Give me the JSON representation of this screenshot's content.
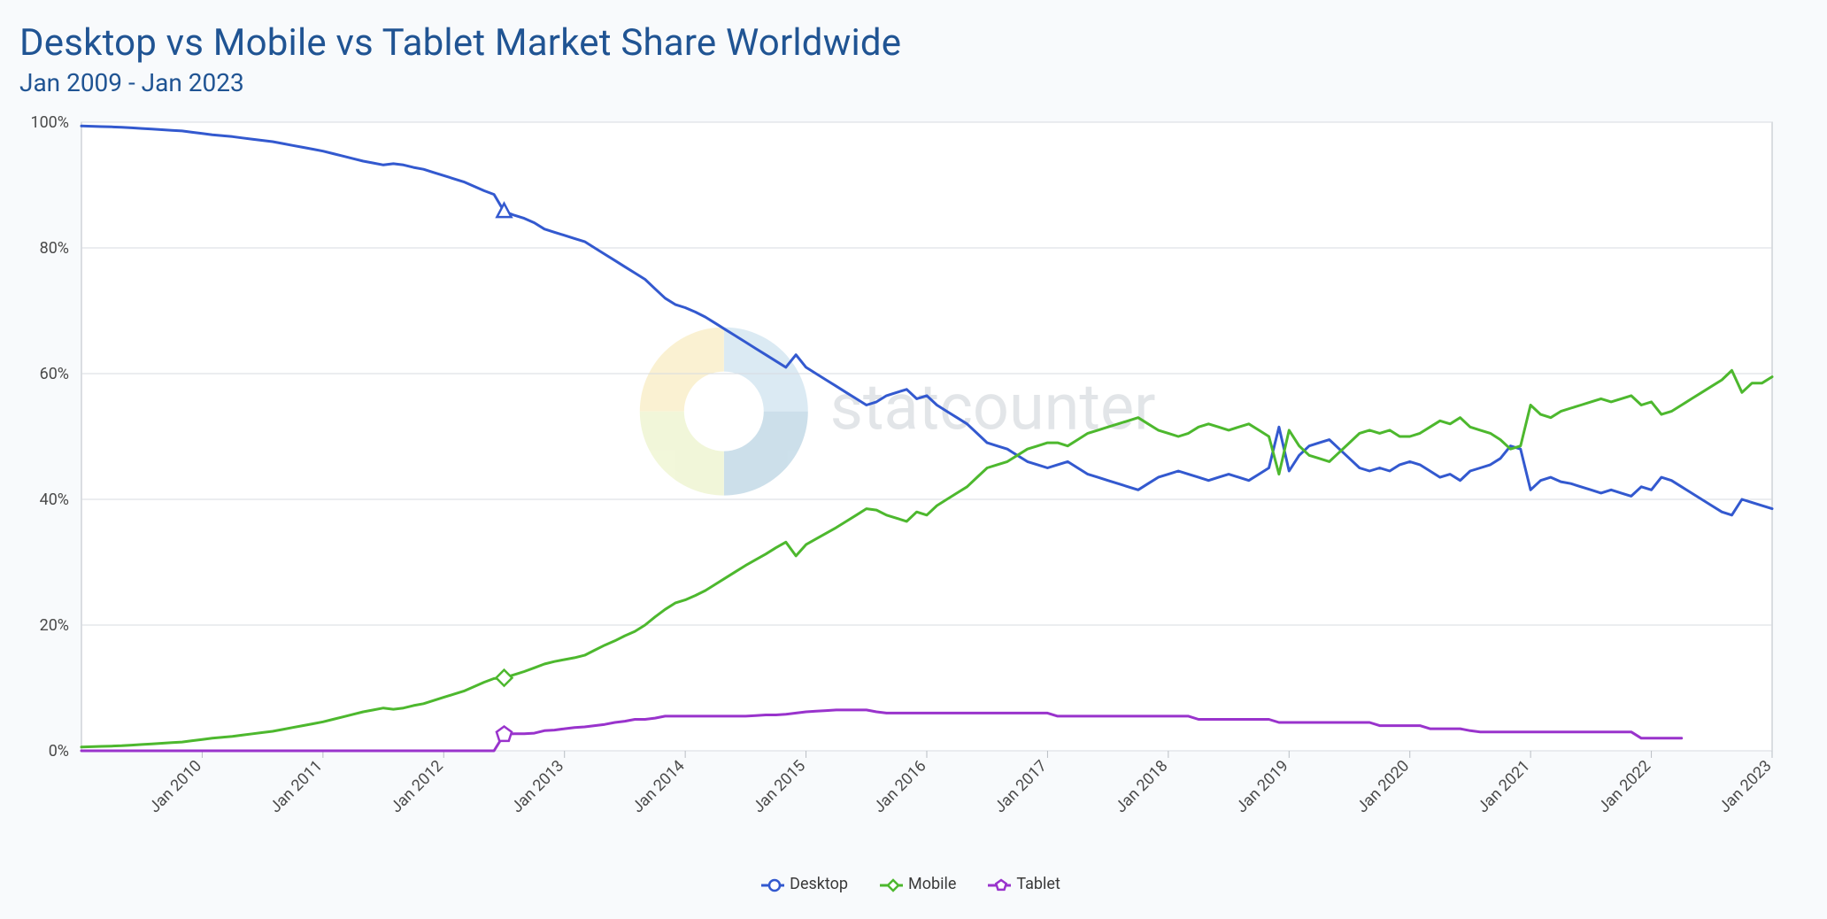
{
  "title": "Desktop vs Mobile vs Tablet Market Share Worldwide",
  "subtitle": "Jan 2009 - Jan 2023",
  "title_color": "#205493",
  "title_fontsize": 42,
  "subtitle_fontsize": 28,
  "watermark_text": "statcounter",
  "watermark_color": "#9aa4ae",
  "chart": {
    "type": "line",
    "background_color": "#ffffff",
    "page_background": "#f8fafc",
    "plot_border_color": "#b9bec4",
    "grid_color": "#d7dbe0",
    "axis_label_color": "#4a4a4a",
    "axis_label_fontsize": 18,
    "line_width": 3,
    "ylim": [
      0,
      100
    ],
    "y_ticks": [
      0,
      20,
      40,
      60,
      80,
      100
    ],
    "y_tick_labels": [
      "0%",
      "20%",
      "40%",
      "60%",
      "80%",
      "100%"
    ],
    "n_points": 169,
    "x_tick_indices": [
      12,
      24,
      36,
      48,
      60,
      72,
      84,
      96,
      108,
      120,
      132,
      144,
      156,
      168
    ],
    "x_tick_labels": [
      "Jan 2010",
      "Jan 2011",
      "Jan 2012",
      "Jan 2013",
      "Jan 2014",
      "Jan 2015",
      "Jan 2016",
      "Jan 2017",
      "Jan 2018",
      "Jan 2019",
      "Jan 2020",
      "Jan 2021",
      "Jan 2022",
      "Jan 2023"
    ],
    "marker_month_index": 42,
    "series": [
      {
        "name": "Desktop",
        "color": "#3359cf",
        "marker": "circle",
        "values": [
          99.4,
          99.35,
          99.3,
          99.25,
          99.2,
          99.1,
          99.0,
          98.9,
          98.8,
          98.7,
          98.6,
          98.4,
          98.2,
          98.0,
          97.85,
          97.7,
          97.5,
          97.3,
          97.1,
          96.9,
          96.6,
          96.3,
          96.0,
          95.7,
          95.4,
          95.0,
          94.6,
          94.2,
          93.8,
          93.5,
          93.2,
          93.4,
          93.2,
          92.8,
          92.5,
          92.0,
          91.5,
          91.0,
          90.5,
          89.8,
          89.1,
          88.5,
          85.8,
          85.2,
          84.7,
          84.0,
          83.0,
          82.5,
          82.0,
          81.5,
          81.0,
          80.0,
          79.0,
          78.0,
          77.0,
          76.0,
          75.0,
          73.5,
          72.0,
          71.0,
          70.5,
          69.8,
          69.0,
          68.0,
          67.0,
          66.0,
          65.0,
          64.0,
          63.0,
          62.0,
          61.0,
          63.0,
          61.0,
          60.0,
          59.0,
          58.0,
          57.0,
          56.0,
          55.0,
          55.5,
          56.5,
          57.0,
          57.5,
          56.0,
          56.5,
          55.0,
          54.0,
          53.0,
          52.0,
          50.5,
          49.0,
          48.5,
          48.0,
          47.0,
          46.0,
          45.5,
          45.0,
          45.5,
          46.0,
          45.0,
          44.0,
          43.5,
          43.0,
          42.5,
          42.0,
          41.5,
          42.5,
          43.5,
          44.0,
          44.5,
          44.0,
          43.5,
          43.0,
          43.5,
          44.0,
          43.5,
          43.0,
          44.0,
          45.0,
          51.5,
          44.5,
          47.0,
          48.5,
          49.0,
          49.5,
          48.0,
          46.5,
          45.0,
          44.5,
          45.0,
          44.5,
          45.5,
          46.0,
          45.5,
          44.5,
          43.5,
          44.0,
          43.0,
          44.5,
          45.0,
          45.5,
          46.5,
          48.5,
          48.0,
          41.5,
          43.0,
          43.5,
          42.8,
          42.5,
          42.0,
          41.5,
          41.0,
          41.5,
          41.0,
          40.5,
          42.0,
          41.5,
          43.5,
          43.0,
          42.0,
          41.0,
          40.0,
          39.0,
          38.0,
          37.5,
          40.0,
          39.5,
          39.0,
          38.5
        ]
      },
      {
        "name": "Mobile",
        "color": "#4db82e",
        "marker": "diamond",
        "values": [
          0.6,
          0.65,
          0.7,
          0.75,
          0.8,
          0.9,
          1.0,
          1.1,
          1.2,
          1.3,
          1.4,
          1.6,
          1.8,
          2.0,
          2.15,
          2.3,
          2.5,
          2.7,
          2.9,
          3.1,
          3.4,
          3.7,
          4.0,
          4.3,
          4.6,
          5.0,
          5.4,
          5.8,
          6.2,
          6.5,
          6.8,
          6.6,
          6.8,
          7.2,
          7.5,
          8.0,
          8.5,
          9.0,
          9.5,
          10.2,
          10.9,
          11.5,
          11.6,
          12.1,
          12.6,
          13.2,
          13.8,
          14.2,
          14.5,
          14.8,
          15.2,
          16.0,
          16.8,
          17.5,
          18.3,
          19.0,
          20.0,
          21.3,
          22.5,
          23.5,
          24.0,
          24.7,
          25.5,
          26.5,
          27.5,
          28.5,
          29.5,
          30.4,
          31.3,
          32.3,
          33.2,
          31.0,
          32.8,
          33.7,
          34.6,
          35.5,
          36.5,
          37.5,
          38.5,
          38.3,
          37.5,
          37.0,
          36.5,
          38.0,
          37.5,
          39.0,
          40.0,
          41.0,
          42.0,
          43.5,
          45.0,
          45.5,
          46.0,
          47.0,
          48.0,
          48.5,
          49.0,
          49.0,
          48.5,
          49.5,
          50.5,
          51.0,
          51.5,
          52.0,
          52.5,
          53.0,
          52.0,
          51.0,
          50.5,
          50.0,
          50.5,
          51.5,
          52.0,
          51.5,
          51.0,
          51.5,
          52.0,
          51.0,
          50.0,
          44.0,
          51.0,
          48.5,
          47.0,
          46.5,
          46.0,
          47.5,
          49.0,
          50.5,
          51.0,
          50.5,
          51.0,
          50.0,
          50.0,
          50.5,
          51.5,
          52.5,
          52.0,
          53.0,
          51.5,
          51.0,
          50.5,
          49.5,
          48.0,
          48.5,
          55.0,
          53.5,
          53.0,
          54.0,
          54.5,
          55.0,
          55.5,
          56.0,
          55.5,
          56.0,
          56.5,
          55.0,
          55.5,
          53.5,
          54.0,
          55.0,
          56.0,
          57.0,
          58.0,
          59.0,
          60.5,
          57.0,
          58.5,
          58.5,
          59.5
        ]
      },
      {
        "name": "Tablet",
        "color": "#9933cc",
        "marker": "pentagon",
        "values": [
          0,
          0,
          0,
          0,
          0,
          0,
          0,
          0,
          0,
          0,
          0,
          0,
          0,
          0,
          0,
          0,
          0,
          0,
          0,
          0,
          0,
          0,
          0,
          0,
          0,
          0,
          0,
          0,
          0,
          0,
          0,
          0,
          0,
          0,
          0,
          0,
          0,
          0,
          0,
          0,
          0,
          0,
          2.6,
          2.7,
          2.7,
          2.8,
          3.2,
          3.3,
          3.5,
          3.7,
          3.8,
          4.0,
          4.2,
          4.5,
          4.7,
          5.0,
          5.0,
          5.2,
          5.5,
          5.5,
          5.5,
          5.5,
          5.5,
          5.5,
          5.5,
          5.5,
          5.5,
          5.6,
          5.7,
          5.7,
          5.8,
          6.0,
          6.2,
          6.3,
          6.4,
          6.5,
          6.5,
          6.5,
          6.5,
          6.2,
          6.0,
          6.0,
          6.0,
          6.0,
          6.0,
          6.0,
          6.0,
          6.0,
          6.0,
          6.0,
          6.0,
          6.0,
          6.0,
          6.0,
          6.0,
          6.0,
          6.0,
          5.5,
          5.5,
          5.5,
          5.5,
          5.5,
          5.5,
          5.5,
          5.5,
          5.5,
          5.5,
          5.5,
          5.5,
          5.5,
          5.5,
          5.0,
          5.0,
          5.0,
          5.0,
          5.0,
          5.0,
          5.0,
          5.0,
          4.5,
          4.5,
          4.5,
          4.5,
          4.5,
          4.5,
          4.5,
          4.5,
          4.5,
          4.5,
          4.0,
          4.0,
          4.0,
          4.0,
          4.0,
          3.5,
          3.5,
          3.5,
          3.5,
          3.2,
          3.0,
          3.0,
          3.0,
          3.0,
          3.0,
          3.0,
          3.0,
          3.0,
          3.0,
          3.0,
          3.0,
          3.0,
          3.0,
          3.0,
          3.0,
          3.0,
          2.0,
          2.0,
          2.0,
          2.0,
          2.0
        ]
      }
    ]
  }
}
